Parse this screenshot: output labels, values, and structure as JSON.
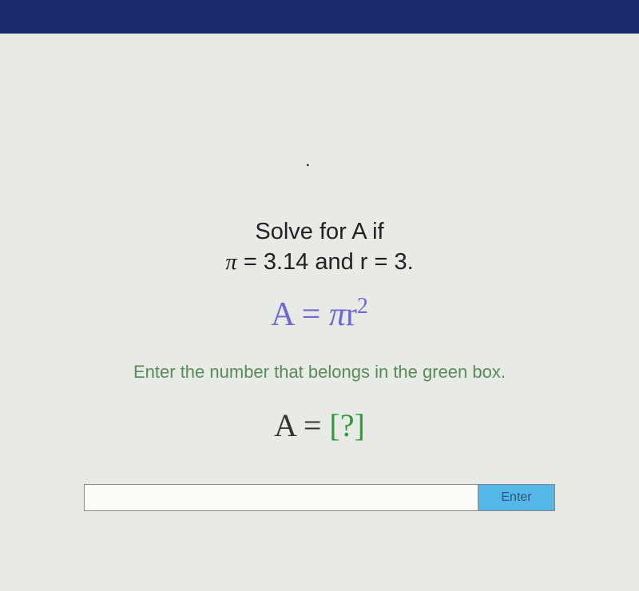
{
  "colors": {
    "header_bar": "#1a2c6e",
    "background": "#e8eae6",
    "prompt_text": "#222222",
    "formula_text": "#7066d4",
    "instruction_text": "#5a8a5a",
    "answer_box": "#2a9d3a",
    "enter_button_bg": "#55b6e8",
    "enter_button_text": "#2a5578",
    "input_bg": "#fcfcf9"
  },
  "content": {
    "dot": ".",
    "prompt_line1": "Solve for A if",
    "prompt_line2_pre": "π",
    "prompt_line2_mid": " = 3.14 and r = 3.",
    "formula_A": "A",
    "formula_eq": " = ",
    "formula_pi": "π",
    "formula_r": "r",
    "formula_exp": "2",
    "instruction": "Enter the number that belongs in the green box.",
    "answer_prefix": "A = ",
    "answer_box": "[?]",
    "enter_label": "Enter",
    "input_value": ""
  },
  "question": {
    "variable": "A",
    "pi_value": 3.14,
    "r_value": 3,
    "formula": "A = πr²"
  }
}
